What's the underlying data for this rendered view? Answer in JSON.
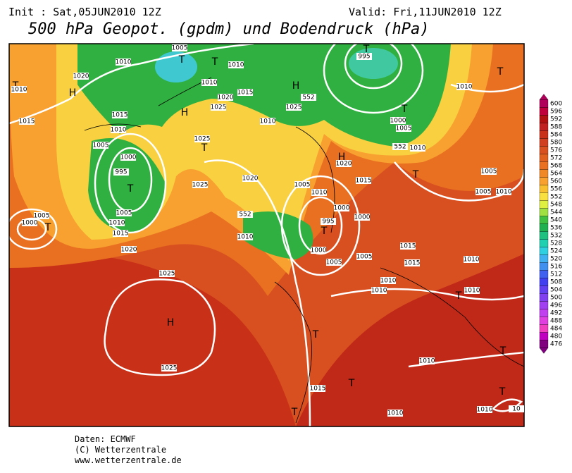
{
  "header": {
    "init": "Init : Sat,05JUN2010 12Z",
    "valid": "Valid: Fri,11JUN2010 12Z",
    "title": "500 hPa Geopot. (gpdm) und Bodendruck (hPa)"
  },
  "map": {
    "labels": [
      "T",
      "1010",
      "H",
      "1020",
      "1015",
      "1010",
      "1005",
      "T",
      "T",
      "1010",
      "1010",
      "1015",
      "1020",
      "1025",
      "H",
      "1015",
      "1010",
      "1005",
      "1000",
      "995",
      "T",
      "1005",
      "1010",
      "1015",
      "1005",
      "T",
      "1000",
      "1020",
      "1025",
      "T",
      "1025",
      "1020",
      "1025",
      "H",
      "1025",
      "T",
      "995",
      "H",
      "552",
      "1025",
      "1010",
      "1000",
      "T",
      "1005",
      "552",
      "1010",
      "H",
      "1020",
      "1015",
      "T",
      "1005",
      "1005",
      "1010",
      "T",
      "1010",
      "1005",
      "1010",
      "1000",
      "1000",
      "995",
      "T",
      "1010",
      "552",
      "1000",
      "1005",
      "1005",
      "1015",
      "1015",
      "1010",
      "1010",
      "1010",
      "T",
      "1010",
      "T",
      "1015",
      "T",
      "1010",
      "T",
      "T",
      "T",
      "1010",
      "1010",
      "10"
    ]
  },
  "colorbar": {
    "ticks": [
      600,
      596,
      592,
      588,
      584,
      580,
      576,
      572,
      568,
      564,
      560,
      556,
      552,
      548,
      544,
      540,
      536,
      532,
      528,
      524,
      520,
      516,
      512,
      508,
      504,
      500,
      496,
      492,
      488,
      484,
      480,
      476
    ],
    "colors": [
      "#b0005a",
      "#c0003a",
      "#b01010",
      "#c02020",
      "#c83018",
      "#d04020",
      "#d85020",
      "#e06020",
      "#e87020",
      "#f08828",
      "#f8a030",
      "#f8c030",
      "#f8e040",
      "#e0f040",
      "#a0e040",
      "#40c040",
      "#20b050",
      "#20c080",
      "#20d0b0",
      "#30d0e0",
      "#40b0f0",
      "#4090f0",
      "#4060f0",
      "#4040f0",
      "#6040f0",
      "#8040f0",
      "#a040f0",
      "#c040f0",
      "#e040e0",
      "#f040c0",
      "#c000c0",
      "#800080"
    ]
  },
  "footer": {
    "lines": [
      "Daten: ECMWF",
      "(C) Wetterzentrale",
      "www.wetterzentrale.de"
    ]
  }
}
